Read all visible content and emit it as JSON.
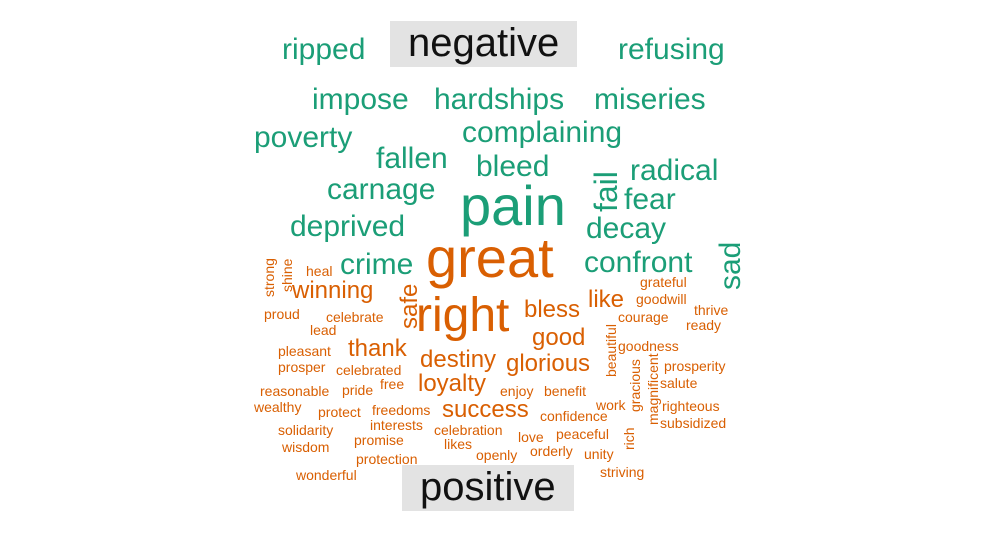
{
  "groups": {
    "negative": "negative",
    "positive": "positive"
  },
  "colors": {
    "negative": "#1b9e77",
    "positive": "#d95f02",
    "label_bg": "#e3e3e3"
  },
  "negative_words": [
    "ripped",
    "refusing",
    "impose",
    "hardships",
    "miseries",
    "poverty",
    "complaining",
    "fallen",
    "bleed",
    "radical",
    "carnage",
    "fail",
    "fear",
    "pain",
    "deprived",
    "decay",
    "sad",
    "crime",
    "confront"
  ],
  "positive_words": [
    "great",
    "strong",
    "shine",
    "heal",
    "winning",
    "safe",
    "right",
    "bless",
    "like",
    "grateful",
    "goodwill",
    "proud",
    "celebrate",
    "thrive",
    "courage",
    "lead",
    "ready",
    "thank",
    "good",
    "beautiful",
    "pleasant",
    "goodness",
    "destiny",
    "glorious",
    "prosper",
    "celebrated",
    "gracious",
    "prosperity",
    "reasonable",
    "pride",
    "free",
    "loyalty",
    "enjoy",
    "benefit",
    "salute",
    "wealthy",
    "magnificent",
    "protect",
    "freedoms",
    "success",
    "work",
    "righteous",
    "rich",
    "confidence",
    "solidarity",
    "interests",
    "celebration",
    "subsidized",
    "peaceful",
    "love",
    "promise",
    "likes",
    "wisdom",
    "orderly",
    "unity",
    "protection",
    "openly",
    "striving",
    "wonderful"
  ]
}
